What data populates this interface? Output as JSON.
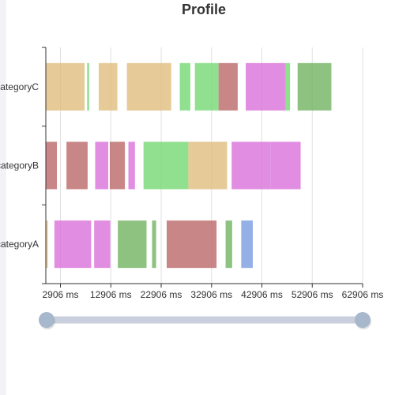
{
  "chart_data": {
    "type": "bar",
    "subtype": "gantt",
    "title": "Profile",
    "xlabel": "",
    "ylabel": "",
    "categories": [
      "categoryA",
      "categoryB",
      "categoryC"
    ],
    "x_unit": "ms",
    "xlim": [
      0,
      62906
    ],
    "x_ticks": [
      2906,
      12906,
      22906,
      32906,
      42906,
      52906,
      62906
    ],
    "x_tick_labels": [
      "2906 ms",
      "12906 ms",
      "22906 ms",
      "32906 ms",
      "42906 ms",
      "52906 ms",
      "62906 ms"
    ],
    "grid": "vertical",
    "datazoom_range": [
      0,
      100
    ],
    "colors": {
      "orange": "#e0bd7d",
      "green": "#75d874",
      "darkgreen": "#72b362",
      "brown": "#bc6868",
      "violet": "#d970d9",
      "blue": "#7b9ce1"
    },
    "tasks": [
      {
        "category": "categoryC",
        "start": 0,
        "end": 7700,
        "color": "orange"
      },
      {
        "category": "categoryC",
        "start": 8200,
        "end": 8600,
        "color": "green"
      },
      {
        "category": "categoryC",
        "start": 10500,
        "end": 14200,
        "color": "orange"
      },
      {
        "category": "categoryC",
        "start": 16100,
        "end": 24900,
        "color": "orange"
      },
      {
        "category": "categoryC",
        "start": 26600,
        "end": 28700,
        "color": "green"
      },
      {
        "category": "categoryC",
        "start": 29600,
        "end": 34300,
        "color": "green"
      },
      {
        "category": "categoryC",
        "start": 34300,
        "end": 38100,
        "color": "brown"
      },
      {
        "category": "categoryC",
        "start": 39700,
        "end": 47600,
        "color": "violet"
      },
      {
        "category": "categoryC",
        "start": 47600,
        "end": 48500,
        "color": "green"
      },
      {
        "category": "categoryC",
        "start": 50000,
        "end": 56700,
        "color": "darkgreen"
      },
      {
        "category": "categoryB",
        "start": 0,
        "end": 2200,
        "color": "brown"
      },
      {
        "category": "categoryB",
        "start": 4100,
        "end": 8300,
        "color": "brown"
      },
      {
        "category": "categoryB",
        "start": 9800,
        "end": 12400,
        "color": "violet"
      },
      {
        "category": "categoryB",
        "start": 12700,
        "end": 15700,
        "color": "brown"
      },
      {
        "category": "categoryB",
        "start": 16400,
        "end": 17700,
        "color": "violet"
      },
      {
        "category": "categoryB",
        "start": 19400,
        "end": 28300,
        "color": "green"
      },
      {
        "category": "categoryB",
        "start": 28300,
        "end": 36000,
        "color": "orange"
      },
      {
        "category": "categoryB",
        "start": 36900,
        "end": 44600,
        "color": "violet"
      },
      {
        "category": "categoryB",
        "start": 44600,
        "end": 50600,
        "color": "violet"
      },
      {
        "category": "categoryA",
        "start": 0,
        "end": 400,
        "color": "orange"
      },
      {
        "category": "categoryA",
        "start": 1700,
        "end": 9000,
        "color": "violet"
      },
      {
        "category": "categoryA",
        "start": 9600,
        "end": 12800,
        "color": "violet"
      },
      {
        "category": "categoryA",
        "start": 14300,
        "end": 20000,
        "color": "darkgreen"
      },
      {
        "category": "categoryA",
        "start": 21100,
        "end": 21900,
        "color": "darkgreen"
      },
      {
        "category": "categoryA",
        "start": 24000,
        "end": 33900,
        "color": "brown"
      },
      {
        "category": "categoryA",
        "start": 35700,
        "end": 37000,
        "color": "darkgreen"
      },
      {
        "category": "categoryA",
        "start": 38800,
        "end": 41100,
        "color": "blue"
      }
    ]
  }
}
